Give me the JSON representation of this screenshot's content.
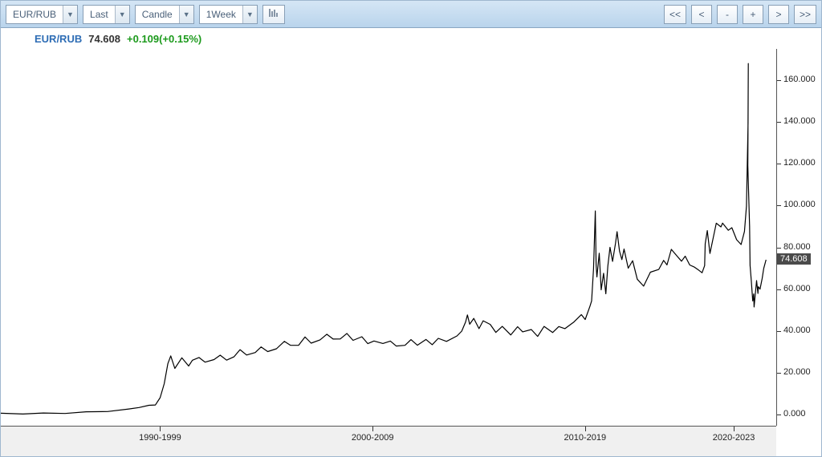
{
  "toolbar": {
    "dropdowns": {
      "symbol": {
        "label": "EUR/RUB",
        "width": "wide"
      },
      "field": {
        "label": "Last"
      },
      "style": {
        "label": "Candle"
      },
      "interval": {
        "label": "1Week"
      }
    },
    "nav": {
      "first": "<<",
      "prev": "<",
      "zoom_out": "-",
      "zoom_in": "+",
      "next": ">",
      "last": ">>"
    }
  },
  "quote": {
    "symbol": "EUR/RUB",
    "last": "74.608",
    "change": "+0.109",
    "pct": "+0.15%",
    "symbol_color": "#2e6db5",
    "last_color": "#333333",
    "change_color": "#1c9a1c"
  },
  "chart": {
    "type": "line",
    "background_color": "#ffffff",
    "line_color": "#000000",
    "line_width": 1.2,
    "ylim": [
      -5,
      175
    ],
    "yticks": [
      0,
      20,
      40,
      60,
      80,
      100,
      120,
      140,
      160
    ],
    "ytick_labels": [
      "0.000",
      "20.000",
      "40.000",
      "60.000",
      "80.000",
      "100.000",
      "120.000",
      "140.000",
      "160.000"
    ],
    "y_marker": {
      "value": 74.608,
      "label": "74.608"
    },
    "xlim": [
      1987,
      2023.5
    ],
    "xticks": [
      {
        "x": 1994.5,
        "label": "1990-1999"
      },
      {
        "x": 2004.5,
        "label": "2000-2009"
      },
      {
        "x": 2014.5,
        "label": "2010-2019"
      },
      {
        "x": 2021.5,
        "label": "2020-2023"
      }
    ],
    "series": [
      [
        1987,
        1
      ],
      [
        1988,
        1
      ],
      [
        1989,
        1
      ],
      [
        1990,
        1.2
      ],
      [
        1991,
        1.5
      ],
      [
        1992,
        2
      ],
      [
        1993,
        3
      ],
      [
        1993.5,
        4
      ],
      [
        1994,
        4.5
      ],
      [
        1994.3,
        5
      ],
      [
        1994.5,
        8
      ],
      [
        1994.7,
        15
      ],
      [
        1994.9,
        25
      ],
      [
        1995,
        28
      ],
      [
        1995.2,
        23
      ],
      [
        1995.5,
        27
      ],
      [
        1995.8,
        24
      ],
      [
        1996,
        26
      ],
      [
        1996.3,
        28
      ],
      [
        1996.6,
        25
      ],
      [
        1997,
        27
      ],
      [
        1997.3,
        29
      ],
      [
        1997.6,
        26
      ],
      [
        1998,
        28
      ],
      [
        1998.3,
        31
      ],
      [
        1998.6,
        29
      ],
      [
        1999,
        30
      ],
      [
        1999.3,
        33
      ],
      [
        1999.6,
        30
      ],
      [
        2000,
        32
      ],
      [
        2000.3,
        35
      ],
      [
        2000.6,
        33
      ],
      [
        2001,
        34
      ],
      [
        2001.3,
        37
      ],
      [
        2001.6,
        35
      ],
      [
        2002,
        36
      ],
      [
        2002.3,
        39
      ],
      [
        2002.6,
        36
      ],
      [
        2003,
        37
      ],
      [
        2003.3,
        39
      ],
      [
        2003.6,
        36
      ],
      [
        2004,
        38
      ],
      [
        2004.3,
        34
      ],
      [
        2004.6,
        36
      ],
      [
        2005,
        34
      ],
      [
        2005.3,
        36
      ],
      [
        2005.6,
        33
      ],
      [
        2006,
        34
      ],
      [
        2006.3,
        36
      ],
      [
        2006.6,
        34
      ],
      [
        2007,
        36
      ],
      [
        2007.3,
        34
      ],
      [
        2007.6,
        37
      ],
      [
        2008,
        35
      ],
      [
        2008.5,
        38
      ],
      [
        2008.7,
        40
      ],
      [
        2008.9,
        45
      ],
      [
        2009,
        48
      ],
      [
        2009.1,
        44
      ],
      [
        2009.3,
        46
      ],
      [
        2009.5,
        42
      ],
      [
        2009.7,
        45
      ],
      [
        2010,
        43
      ],
      [
        2010.3,
        40
      ],
      [
        2010.6,
        42
      ],
      [
        2011,
        39
      ],
      [
        2011.3,
        42
      ],
      [
        2011.6,
        40
      ],
      [
        2012,
        41
      ],
      [
        2012.3,
        38
      ],
      [
        2012.6,
        42
      ],
      [
        2013,
        40
      ],
      [
        2013.3,
        43
      ],
      [
        2013.6,
        41
      ],
      [
        2014,
        45
      ],
      [
        2014.3,
        48
      ],
      [
        2014.5,
        46
      ],
      [
        2014.7,
        52
      ],
      [
        2014.8,
        55
      ],
      [
        2014.9,
        70
      ],
      [
        2014.95,
        98
      ],
      [
        2015,
        72
      ],
      [
        2015.1,
        66
      ],
      [
        2015.2,
        78
      ],
      [
        2015.3,
        60
      ],
      [
        2015.4,
        68
      ],
      [
        2015.5,
        58
      ],
      [
        2015.6,
        72
      ],
      [
        2015.7,
        80
      ],
      [
        2015.8,
        74
      ],
      [
        2015.9,
        82
      ],
      [
        2016,
        88
      ],
      [
        2016.1,
        78
      ],
      [
        2016.2,
        74
      ],
      [
        2016.3,
        80
      ],
      [
        2016.5,
        70
      ],
      [
        2016.7,
        74
      ],
      [
        2017,
        65
      ],
      [
        2017.3,
        62
      ],
      [
        2017.6,
        68
      ],
      [
        2018,
        70
      ],
      [
        2018.2,
        74
      ],
      [
        2018.4,
        72
      ],
      [
        2018.6,
        80
      ],
      [
        2018.8,
        76
      ],
      [
        2019,
        74
      ],
      [
        2019.2,
        76
      ],
      [
        2019.4,
        72
      ],
      [
        2019.6,
        71
      ],
      [
        2019.8,
        70
      ],
      [
        2020,
        68
      ],
      [
        2020.1,
        72
      ],
      [
        2020.2,
        82
      ],
      [
        2020.3,
        88
      ],
      [
        2020.4,
        78
      ],
      [
        2020.5,
        82
      ],
      [
        2020.7,
        92
      ],
      [
        2020.9,
        90
      ],
      [
        2021,
        92
      ],
      [
        2021.2,
        88
      ],
      [
        2021.4,
        90
      ],
      [
        2021.6,
        84
      ],
      [
        2021.8,
        82
      ],
      [
        2022,
        88
      ],
      [
        2022.1,
        100
      ],
      [
        2022.14,
        140
      ],
      [
        2022.17,
        168
      ],
      [
        2022.2,
        120
      ],
      [
        2022.25,
        90
      ],
      [
        2022.3,
        72
      ],
      [
        2022.35,
        64
      ],
      [
        2022.4,
        55
      ],
      [
        2022.45,
        58
      ],
      [
        2022.5,
        52
      ],
      [
        2022.55,
        65
      ],
      [
        2022.6,
        58
      ],
      [
        2022.65,
        62
      ],
      [
        2022.7,
        60
      ],
      [
        2022.8,
        66
      ],
      [
        2022.9,
        70
      ],
      [
        2023,
        74.6
      ]
    ]
  }
}
